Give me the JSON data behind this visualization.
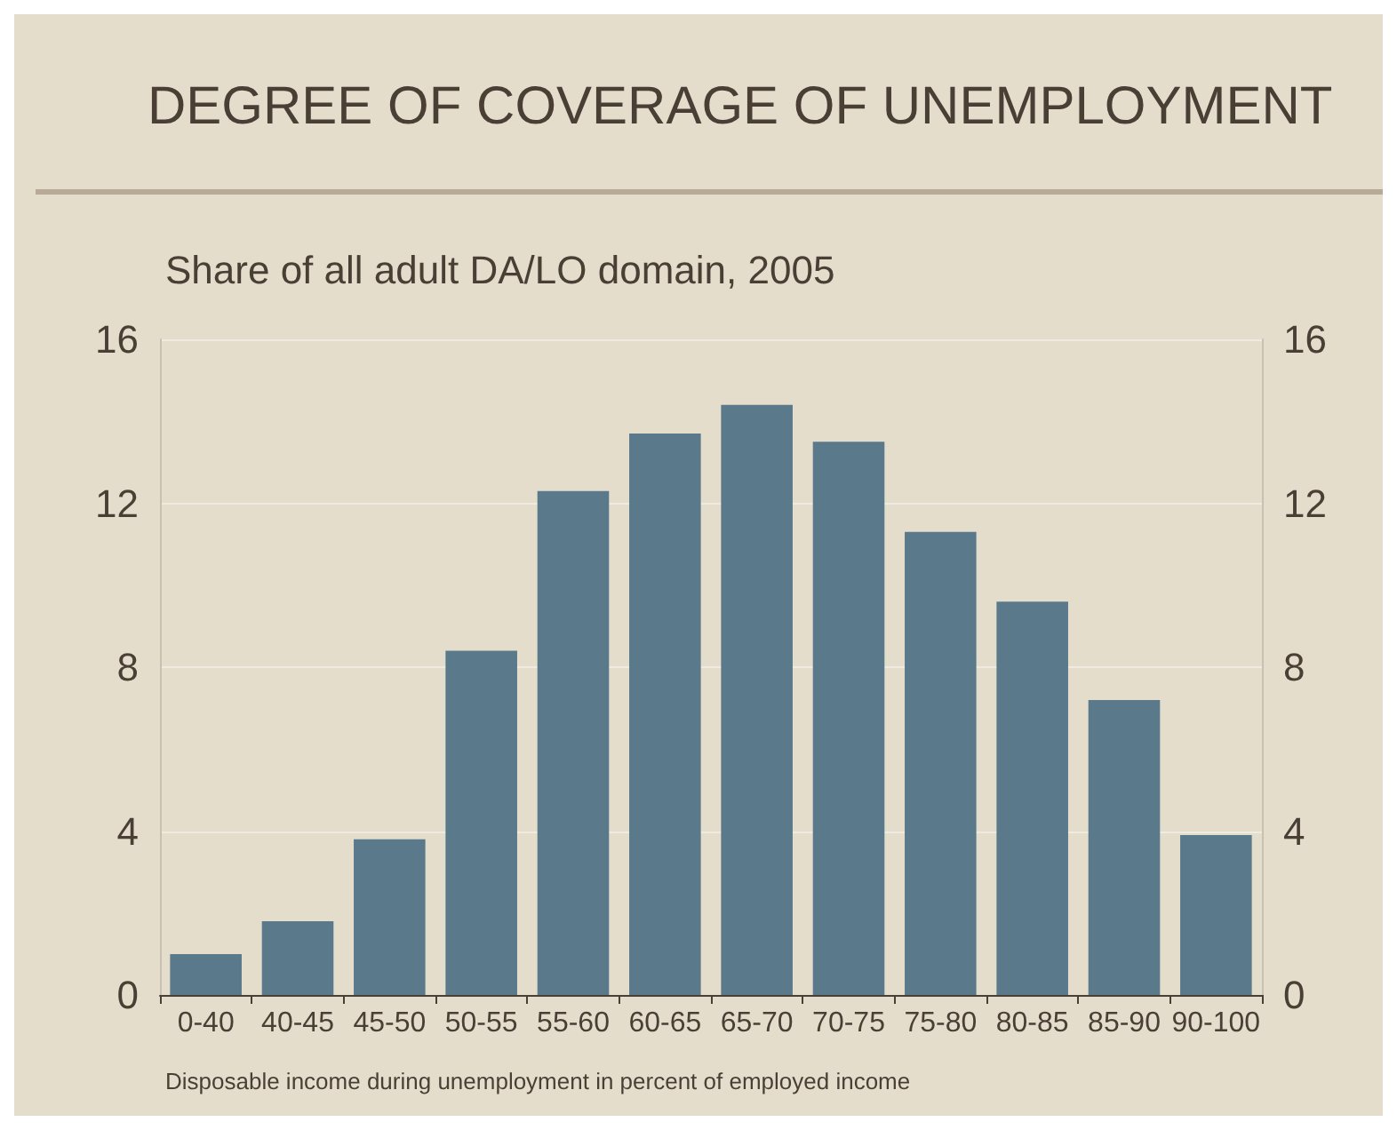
{
  "chart_data": {
    "type": "bar",
    "title": "DEGREE OF COVERAGE OF UNEMPLOYMENT",
    "subtitle": "Share of all adult DA/LO domain, 2005",
    "xlabel": "Disposable income during unemployment in percent of employed income",
    "categories": [
      "0-40",
      "40-45",
      "45-50",
      "50-55",
      "55-60",
      "60-65",
      "65-70",
      "70-75",
      "75-80",
      "80-85",
      "85-90",
      "90-100"
    ],
    "values": [
      1.0,
      1.8,
      3.8,
      8.4,
      12.3,
      13.7,
      14.4,
      13.5,
      11.3,
      9.6,
      7.2,
      3.9
    ],
    "color": "#5a7a8c",
    "ylim": [
      0,
      16
    ],
    "yticks": [
      0,
      4,
      8,
      12,
      16
    ],
    "y2lim": [
      0,
      16
    ],
    "y2ticks": [
      0,
      4,
      8,
      12,
      16
    ],
    "grid": "y"
  }
}
